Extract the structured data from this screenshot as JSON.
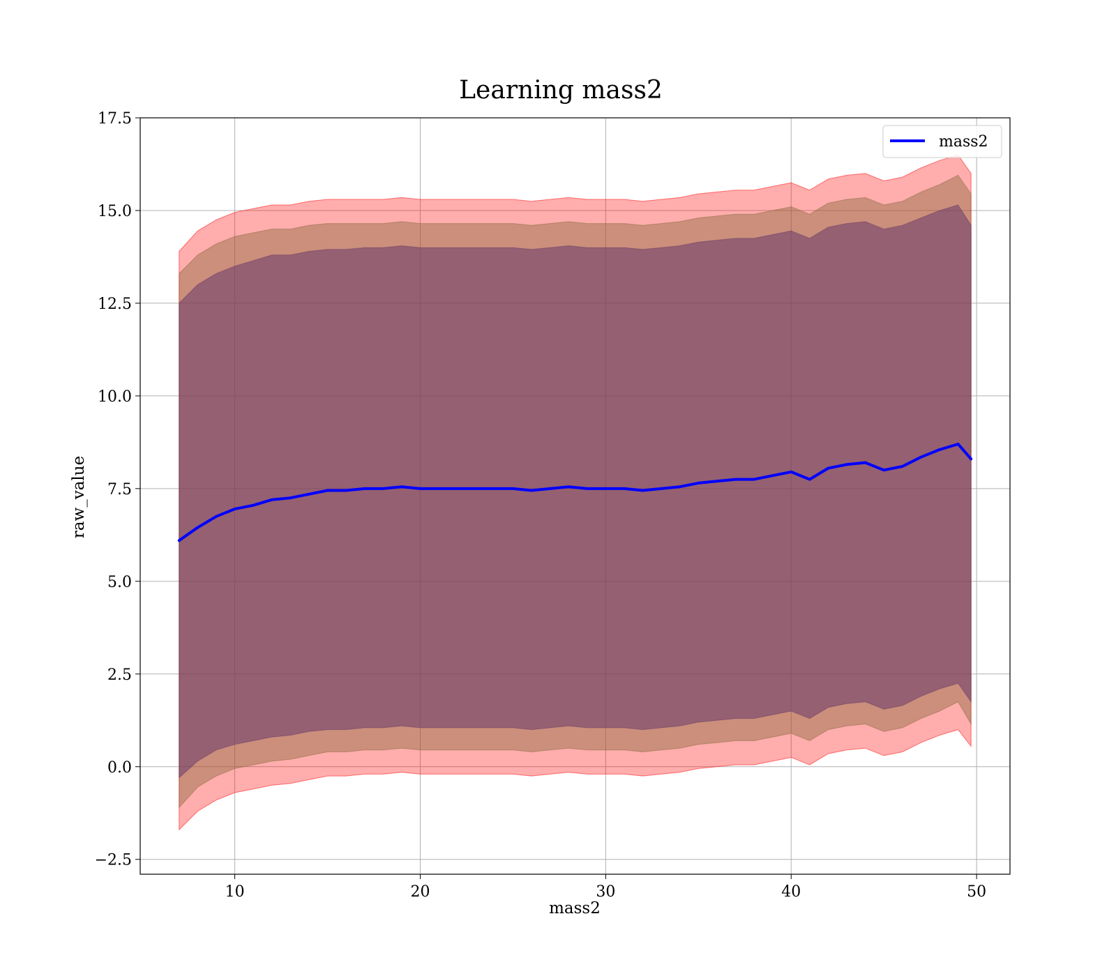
{
  "chart_data": {
    "type": "line",
    "title": "Learning mass2",
    "xlabel": "mass2",
    "ylabel": "raw_value",
    "xlim": [
      4.9,
      51.8
    ],
    "ylim": [
      -2.9,
      17.5
    ],
    "grid": true,
    "legend_position": "top-right",
    "x_ticks": [
      10,
      20,
      30,
      40,
      50
    ],
    "x_tick_labels": [
      "10",
      "20",
      "30",
      "40",
      "50"
    ],
    "y_ticks": [
      -2.5,
      0.0,
      2.5,
      5.0,
      7.5,
      10.0,
      12.5,
      15.0,
      17.5
    ],
    "y_tick_labels": [
      "−2.5",
      "0.0",
      "2.5",
      "5.0",
      "7.5",
      "10.0",
      "12.5",
      "15.0",
      "17.5"
    ],
    "colors": {
      "line": "#0000ff",
      "band_outer": "#ff0000",
      "band_middle": "#8b6a3f",
      "band_inner": "#6a3a6a"
    },
    "series": [
      {
        "name": "mass2",
        "x": [
          7.0,
          8.0,
          9.0,
          10.0,
          11.0,
          12.0,
          13.0,
          14.0,
          15.0,
          16.0,
          17.0,
          18.0,
          19.0,
          20.0,
          21.0,
          22.0,
          23.0,
          24.0,
          25.0,
          26.0,
          27.0,
          28.0,
          29.0,
          30.0,
          31.0,
          32.0,
          33.0,
          34.0,
          35.0,
          36.0,
          37.0,
          38.0,
          39.0,
          40.0,
          41.0,
          42.0,
          43.0,
          44.0,
          45.0,
          46.0,
          47.0,
          48.0,
          49.0,
          49.7
        ],
        "y": [
          6.1,
          6.45,
          6.75,
          6.95,
          7.05,
          7.2,
          7.25,
          7.35,
          7.45,
          7.45,
          7.5,
          7.5,
          7.55,
          7.5,
          7.5,
          7.5,
          7.5,
          7.5,
          7.5,
          7.45,
          7.5,
          7.55,
          7.5,
          7.5,
          7.5,
          7.45,
          7.5,
          7.55,
          7.65,
          7.7,
          7.75,
          7.75,
          7.85,
          7.95,
          7.75,
          8.05,
          8.15,
          8.2,
          8.0,
          8.1,
          8.35,
          8.55,
          8.7,
          8.3
        ]
      }
    ],
    "bands": [
      {
        "level": "outer",
        "upper": [
          13.9,
          14.45,
          14.75,
          14.95,
          15.05,
          15.15,
          15.15,
          15.25,
          15.3,
          15.3,
          15.3,
          15.3,
          15.35,
          15.3,
          15.3,
          15.3,
          15.3,
          15.3,
          15.3,
          15.25,
          15.3,
          15.35,
          15.3,
          15.3,
          15.3,
          15.25,
          15.3,
          15.35,
          15.45,
          15.5,
          15.55,
          15.55,
          15.65,
          15.75,
          15.55,
          15.85,
          15.95,
          16.0,
          15.8,
          15.9,
          16.15,
          16.35,
          16.5,
          16.0
        ],
        "lower": [
          -1.7,
          -1.2,
          -0.9,
          -0.7,
          -0.6,
          -0.5,
          -0.45,
          -0.35,
          -0.25,
          -0.25,
          -0.2,
          -0.2,
          -0.15,
          -0.2,
          -0.2,
          -0.2,
          -0.2,
          -0.2,
          -0.2,
          -0.25,
          -0.2,
          -0.15,
          -0.2,
          -0.2,
          -0.2,
          -0.25,
          -0.2,
          -0.15,
          -0.05,
          0.0,
          0.05,
          0.05,
          0.15,
          0.25,
          0.05,
          0.35,
          0.45,
          0.5,
          0.3,
          0.4,
          0.65,
          0.85,
          1.0,
          0.55
        ]
      },
      {
        "level": "middle",
        "upper": [
          13.3,
          13.8,
          14.1,
          14.3,
          14.4,
          14.5,
          14.5,
          14.6,
          14.65,
          14.65,
          14.65,
          14.65,
          14.7,
          14.65,
          14.65,
          14.65,
          14.65,
          14.65,
          14.65,
          14.6,
          14.65,
          14.7,
          14.65,
          14.65,
          14.65,
          14.6,
          14.65,
          14.7,
          14.8,
          14.85,
          14.9,
          14.9,
          15.0,
          15.1,
          14.9,
          15.2,
          15.3,
          15.35,
          15.15,
          15.25,
          15.5,
          15.7,
          15.95,
          15.45
        ],
        "lower": [
          -1.1,
          -0.55,
          -0.25,
          -0.05,
          0.05,
          0.15,
          0.2,
          0.3,
          0.4,
          0.4,
          0.45,
          0.45,
          0.5,
          0.45,
          0.45,
          0.45,
          0.45,
          0.45,
          0.45,
          0.4,
          0.45,
          0.5,
          0.45,
          0.45,
          0.45,
          0.4,
          0.45,
          0.5,
          0.6,
          0.65,
          0.7,
          0.7,
          0.8,
          0.9,
          0.7,
          1.0,
          1.1,
          1.15,
          0.95,
          1.05,
          1.3,
          1.5,
          1.75,
          1.15
        ]
      },
      {
        "level": "inner",
        "upper": [
          12.5,
          13.0,
          13.3,
          13.5,
          13.65,
          13.8,
          13.8,
          13.9,
          13.95,
          13.95,
          14.0,
          14.0,
          14.05,
          14.0,
          14.0,
          14.0,
          14.0,
          14.0,
          14.0,
          13.95,
          14.0,
          14.05,
          14.0,
          14.0,
          14.0,
          13.95,
          14.0,
          14.05,
          14.15,
          14.2,
          14.25,
          14.25,
          14.35,
          14.45,
          14.25,
          14.55,
          14.65,
          14.7,
          14.5,
          14.6,
          14.8,
          15.0,
          15.15,
          14.6
        ],
        "lower": [
          -0.3,
          0.15,
          0.45,
          0.6,
          0.7,
          0.8,
          0.85,
          0.95,
          1.0,
          1.0,
          1.05,
          1.05,
          1.1,
          1.05,
          1.05,
          1.05,
          1.05,
          1.05,
          1.05,
          1.0,
          1.05,
          1.1,
          1.05,
          1.05,
          1.05,
          1.0,
          1.05,
          1.1,
          1.2,
          1.25,
          1.3,
          1.3,
          1.4,
          1.5,
          1.3,
          1.6,
          1.7,
          1.75,
          1.55,
          1.65,
          1.9,
          2.1,
          2.25,
          1.75
        ]
      }
    ]
  }
}
